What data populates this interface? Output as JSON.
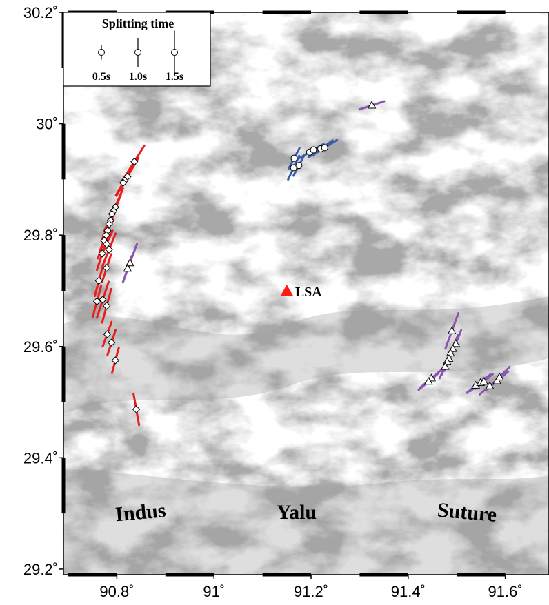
{
  "map": {
    "lat_labels": [
      "30.2˚",
      "30˚",
      "29.8˚",
      "29.6˚",
      "29.4˚",
      "29.2˚"
    ],
    "lon_labels": [
      "90.8˚",
      "91˚",
      "91.2˚",
      "91.4˚",
      "91.6˚"
    ],
    "lat_values": [
      30.2,
      30.0,
      29.8,
      29.6,
      29.4,
      29.2
    ],
    "lon_values": [
      90.8,
      91.0,
      91.2,
      91.4,
      91.6
    ],
    "extent": {
      "lon": [
        90.69,
        91.69
      ],
      "lat": [
        29.19,
        30.2
      ]
    },
    "legend": {
      "title": "Splitting time",
      "items": [
        {
          "label": "0.5s",
          "seconds": 0.5
        },
        {
          "label": "1.0s",
          "seconds": 1.0
        },
        {
          "label": "1.5s",
          "seconds": 1.5
        }
      ]
    },
    "station": {
      "label": "LSA",
      "lon": 91.15,
      "lat": 29.7,
      "color": "#ff1a1a"
    },
    "region_labels": [
      {
        "text": "Indus",
        "lon": 90.85,
        "lat": 29.29,
        "rotate": -5
      },
      {
        "text": "Yalu",
        "lon": 91.17,
        "lat": 29.29,
        "rotate": 0
      },
      {
        "text": "Suture",
        "lon": 91.52,
        "lat": 29.29,
        "rotate": 5
      }
    ],
    "colors": {
      "red": "#e61e1e",
      "blue": "#3a5ea8",
      "purple": "#8a55b0",
      "grey_dark": "#9a9a9a",
      "grey_light": "#ffffff"
    },
    "measurements": {
      "red_diamonds": [
        [
          90.836,
          29.932,
          32,
          1.3
        ],
        [
          90.822,
          29.905,
          30,
          1.5
        ],
        [
          90.816,
          29.898,
          28,
          1.2
        ],
        [
          90.813,
          29.894,
          30,
          1.0
        ],
        [
          90.797,
          29.85,
          22,
          1.4
        ],
        [
          90.793,
          29.843,
          25,
          1.2
        ],
        [
          90.79,
          29.838,
          24,
          1.3
        ],
        [
          90.787,
          29.826,
          22,
          1.5
        ],
        [
          90.784,
          29.82,
          25,
          1.1
        ],
        [
          90.781,
          29.808,
          20,
          1.5
        ],
        [
          90.778,
          29.8,
          22,
          1.2
        ],
        [
          90.774,
          29.79,
          20,
          1.3
        ],
        [
          90.779,
          29.784,
          24,
          1.0
        ],
        [
          90.784,
          29.774,
          22,
          1.2
        ],
        [
          90.77,
          29.767,
          18,
          1.2
        ],
        [
          90.779,
          29.741,
          18,
          1.0
        ],
        [
          90.763,
          29.718,
          15,
          1.1
        ],
        [
          90.771,
          29.684,
          18,
          1.3
        ],
        [
          90.759,
          29.681,
          15,
          1.1
        ],
        [
          90.779,
          29.673,
          15,
          1.2
        ],
        [
          90.78,
          29.622,
          20,
          0.9
        ],
        [
          90.789,
          29.607,
          18,
          0.9
        ],
        [
          90.797,
          29.575,
          15,
          0.9
        ],
        [
          90.84,
          29.487,
          -10,
          1.1
        ]
      ],
      "blue_circles": [
        [
          91.165,
          29.938,
          28,
          0.8
        ],
        [
          91.164,
          29.921,
          25,
          0.9
        ],
        [
          91.175,
          29.925,
          28,
          0.8
        ],
        [
          91.197,
          29.949,
          60,
          1.0
        ],
        [
          91.205,
          29.953,
          60,
          0.8
        ],
        [
          91.22,
          29.955,
          55,
          1.0
        ],
        [
          91.228,
          29.957,
          58,
          1.0
        ]
      ],
      "purple_triangles": [
        [
          91.325,
          30.033,
          72,
          0.9
        ],
        [
          90.827,
          29.75,
          20,
          1.4
        ],
        [
          90.822,
          29.74,
          18,
          0.9
        ],
        [
          91.49,
          29.628,
          20,
          1.3
        ],
        [
          91.498,
          29.605,
          22,
          1.0
        ],
        [
          91.492,
          29.596,
          20,
          1.0
        ],
        [
          91.487,
          29.588,
          22,
          1.0
        ],
        [
          91.484,
          29.578,
          20,
          0.9
        ],
        [
          91.48,
          29.573,
          22,
          1.0
        ],
        [
          91.476,
          29.564,
          25,
          0.9
        ],
        [
          91.448,
          29.543,
          50,
          1.0
        ],
        [
          91.442,
          29.537,
          50,
          0.9
        ],
        [
          91.539,
          29.53,
          50,
          0.8
        ],
        [
          91.549,
          29.535,
          50,
          0.9
        ],
        [
          91.556,
          29.537,
          50,
          0.8
        ],
        [
          91.568,
          29.529,
          50,
          0.9
        ],
        [
          91.583,
          29.538,
          50,
          1.0
        ],
        [
          91.588,
          29.545,
          45,
          1.0
        ]
      ]
    }
  }
}
